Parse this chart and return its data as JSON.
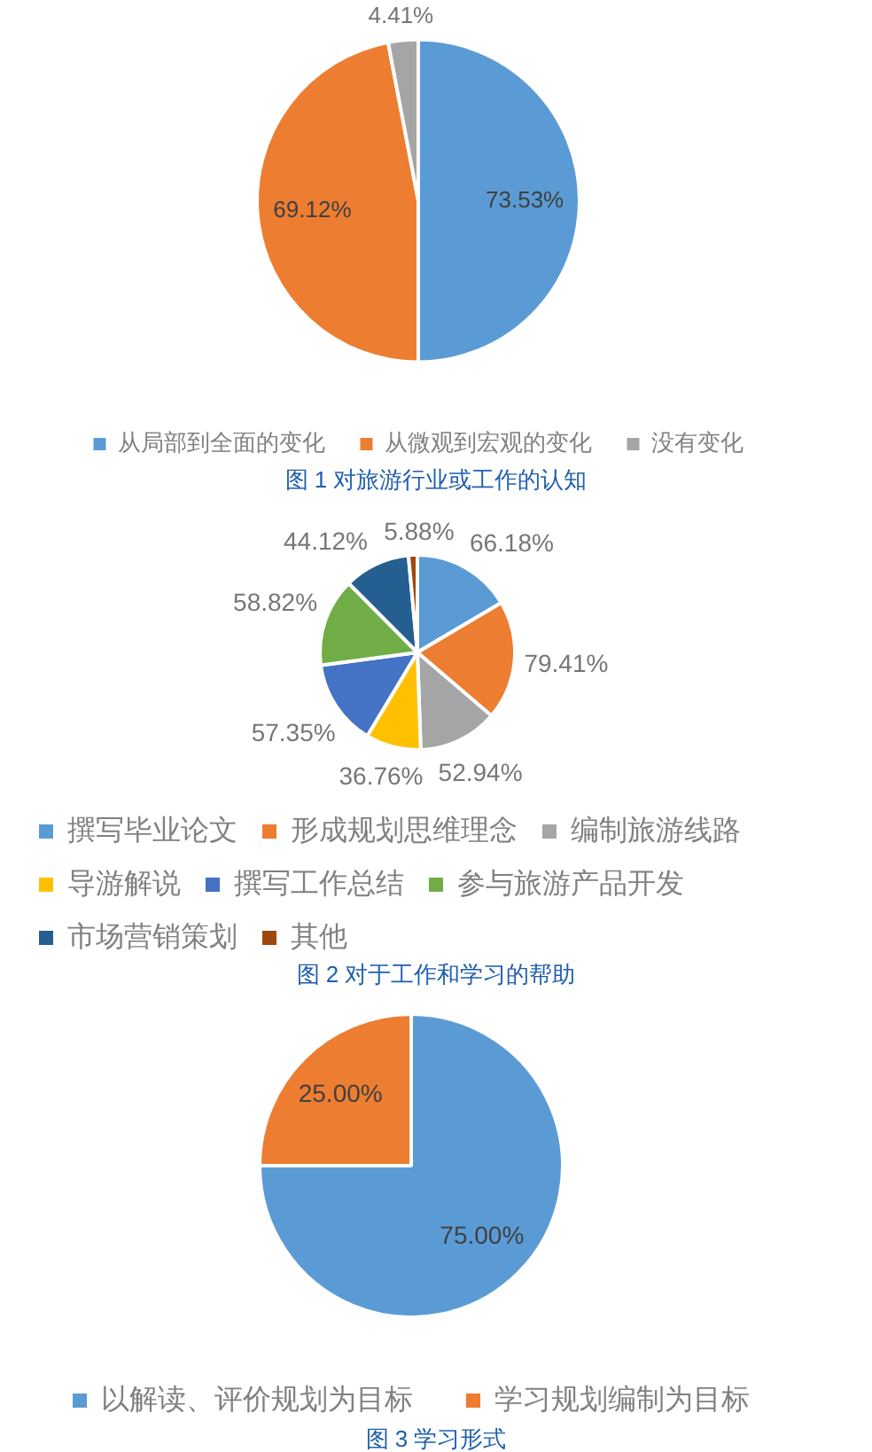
{
  "chart_data": [
    {
      "type": "pie",
      "title": "图 1 对旅游行业或工作的认知",
      "categories": [
        "从局部到全面的变化",
        "从微观到宏观的变化",
        "没有变化"
      ],
      "values": [
        73.53,
        69.12,
        4.41
      ],
      "colors": [
        "#5b9bd5",
        "#ed7d31",
        "#a5a5a5"
      ],
      "value_labels": [
        "73.53%",
        "69.12%",
        "4.41%"
      ],
      "legend": "bottom"
    },
    {
      "type": "pie",
      "title": "图 2 对于工作和学习的帮助",
      "categories": [
        "撰写毕业论文",
        "形成规划思维理念",
        "编制旅游线路",
        "导游解说",
        "撰写工作总结",
        "参与旅游产品开发",
        "市场营销策划",
        "其他"
      ],
      "values": [
        66.18,
        79.41,
        52.94,
        36.76,
        57.35,
        58.82,
        44.12,
        5.88
      ],
      "colors": [
        "#5b9bd5",
        "#ed7d31",
        "#a5a5a5",
        "#ffc000",
        "#4472c4",
        "#70ad47",
        "#255e91",
        "#9e480e"
      ],
      "value_labels": [
        "66.18%",
        "79.41%",
        "52.94%",
        "36.76%",
        "57.35%",
        "58.82%",
        "44.12%",
        "5.88%"
      ],
      "legend": "bottom"
    },
    {
      "type": "pie",
      "title": "图 3 学习形式",
      "categories": [
        "以解读、评价规划为目标",
        "学习规划编制为目标"
      ],
      "values": [
        75,
        25
      ],
      "colors": [
        "#5b9bd5",
        "#ed7d31"
      ],
      "value_labels": [
        "75.00%",
        "25.00%"
      ],
      "legend": "bottom"
    }
  ]
}
